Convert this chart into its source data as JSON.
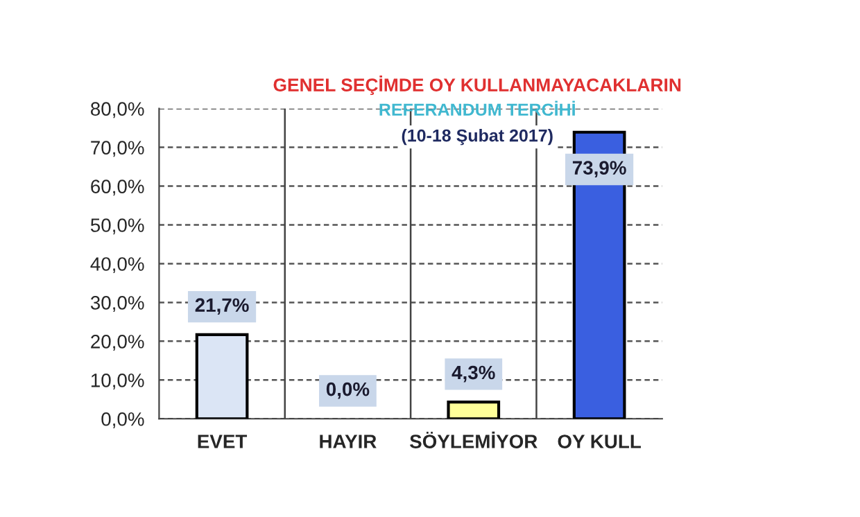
{
  "chart_data": {
    "type": "bar",
    "title": "GENEL SEÇİMDE OY KULLANMAYACAKLARIN",
    "subtitle": "REFERANDUM TERCİHİ",
    "annotations": [
      "(10-18 Şubat 2017)"
    ],
    "categories": [
      "EVET",
      "HAYIR",
      "SÖYLEMİYOR",
      "OY KULL"
    ],
    "values": [
      21.7,
      0.0,
      4.3,
      73.9
    ],
    "colors": [
      "#dbe5f5",
      null,
      "#ffff99",
      "#3a5fe0"
    ],
    "value_labels": [
      "21,7%",
      "0,0%",
      "4,3%",
      "73,9%"
    ],
    "ylim": [
      0,
      80
    ],
    "yticks": [
      {
        "value": 0,
        "label": "0,0%"
      },
      {
        "value": 10,
        "label": "10,0%"
      },
      {
        "value": 20,
        "label": "20,0%"
      },
      {
        "value": 30,
        "label": "30,0%"
      },
      {
        "value": 40,
        "label": "40,0%"
      },
      {
        "value": 50,
        "label": "50,0%"
      },
      {
        "value": 60,
        "label": "60,0%"
      },
      {
        "value": 70,
        "label": "70,0%"
      },
      {
        "value": 80,
        "label": "80,0%"
      }
    ],
    "grid": "y"
  }
}
